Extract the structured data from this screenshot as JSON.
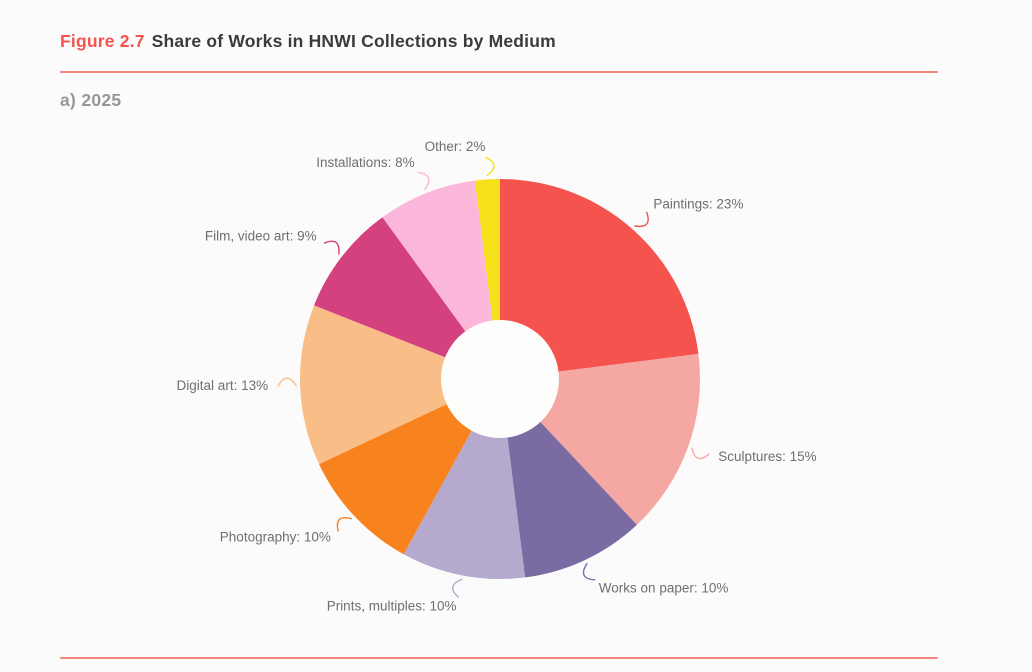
{
  "page": {
    "figure_label": "Figure 2.7",
    "figure_title": "Share of Works in HNWI Collections by Medium",
    "subtitle": "a) 2025"
  },
  "colors": {
    "background": "#FCFBFB",
    "rule": "#F2857C",
    "accent": "#F4534E",
    "title_text": "#3B3B3B",
    "subtitle_text": "#979797",
    "label_text": "#6F6F6F",
    "donut_hole": "#FDFDFC"
  },
  "chart_data": {
    "type": "pie",
    "variant": "donut",
    "title": "Share of Works in HNWI Collections by Medium",
    "subtitle": "a) 2025",
    "start_angle_deg": 0,
    "direction": "clockwise",
    "labels_position": "outside-with-leader-lines",
    "legend": "none",
    "segments": [
      {
        "label": "Paintings",
        "value": 23,
        "color": "#F4534E",
        "label_text": "Paintings: 23%"
      },
      {
        "label": "Sculptures",
        "value": 15,
        "color": "#F5A8A3",
        "label_text": "Sculptures: 15%"
      },
      {
        "label": "Works on paper",
        "value": 10,
        "color": "#7B6BA3",
        "label_text": "Works on paper: 10%"
      },
      {
        "label": "Prints, multiples",
        "value": 10,
        "color": "#B5A9CD",
        "label_text": "Prints, multiples: 10%"
      },
      {
        "label": "Photography",
        "value": 10,
        "color": "#F8821E",
        "label_text": "Photography: 10%"
      },
      {
        "label": "Digital art",
        "value": 13,
        "color": "#F9BE88",
        "label_text": "Digital art: 13%"
      },
      {
        "label": "Film, video art",
        "value": 9,
        "color": "#D4417F",
        "label_text": "Film, video art: 9%"
      },
      {
        "label": "Installations",
        "value": 8,
        "color": "#FAB7DA",
        "label_text": "Installations: 8%"
      },
      {
        "label": "Other",
        "value": 2,
        "color": "#F6E01A",
        "label_text": "Other: 2%"
      }
    ]
  }
}
